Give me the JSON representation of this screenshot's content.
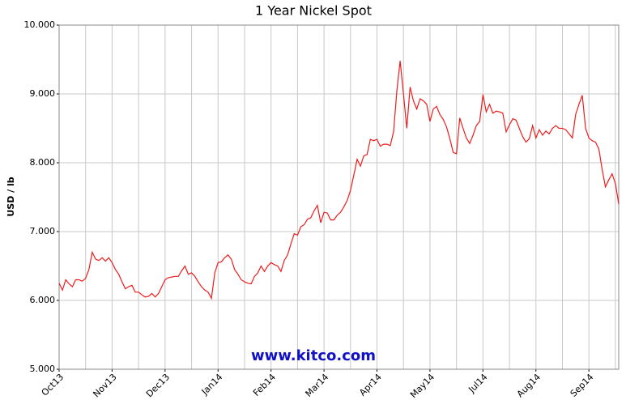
{
  "chart_data": {
    "type": "line",
    "title": "1 Year Nickel Spot",
    "y_label": "USD / lb",
    "watermark": "www.kitco.com",
    "x": [
      0,
      1,
      2,
      3,
      4,
      5,
      6,
      7,
      8,
      9,
      10,
      11,
      12,
      13,
      14,
      15,
      16,
      17,
      18,
      19,
      20,
      21,
      22,
      23,
      24,
      25,
      26,
      27,
      28,
      29,
      30,
      31,
      32,
      33,
      34,
      35,
      36,
      37,
      38,
      39,
      40,
      41,
      42,
      43,
      44,
      45,
      46,
      47,
      48,
      49,
      50,
      51,
      52,
      53,
      54,
      55,
      56,
      57,
      58,
      59,
      60,
      61,
      62,
      63,
      64,
      65,
      66,
      67,
      68,
      69,
      70,
      71,
      72,
      73,
      74,
      75,
      76,
      77,
      78,
      79,
      80,
      81,
      82,
      83,
      84,
      85,
      86,
      87,
      88,
      89,
      90,
      91,
      92,
      93,
      94,
      95,
      96,
      97,
      98,
      99,
      100,
      101,
      102,
      103,
      104,
      105,
      106,
      107,
      108,
      109,
      110,
      111,
      112,
      113,
      114,
      115,
      116,
      117,
      118,
      119,
      120,
      121,
      122,
      123,
      124,
      125,
      126,
      127,
      128,
      129,
      130,
      131,
      132,
      133,
      134,
      135,
      136,
      137,
      138,
      139,
      140,
      141,
      142,
      143,
      144,
      145,
      146,
      147,
      148,
      149,
      150,
      151,
      152,
      153,
      154,
      155,
      156,
      157,
      158,
      159,
      160,
      161,
      162,
      163,
      164,
      165,
      166,
      167,
      168,
      169
    ],
    "series": [
      {
        "name": "Nickel",
        "color": "#ee1c1c",
        "values": [
          6.25,
          6.15,
          6.3,
          6.24,
          6.2,
          6.3,
          6.3,
          6.28,
          6.32,
          6.45,
          6.7,
          6.6,
          6.58,
          6.62,
          6.57,
          6.62,
          6.55,
          6.45,
          6.38,
          6.27,
          6.17,
          6.2,
          6.22,
          6.12,
          6.12,
          6.08,
          6.05,
          6.06,
          6.1,
          6.05,
          6.1,
          6.2,
          6.3,
          6.33,
          6.34,
          6.35,
          6.35,
          6.43,
          6.5,
          6.38,
          6.4,
          6.35,
          6.27,
          6.2,
          6.15,
          6.12,
          6.03,
          6.4,
          6.55,
          6.56,
          6.62,
          6.66,
          6.6,
          6.45,
          6.38,
          6.3,
          6.27,
          6.25,
          6.24,
          6.35,
          6.4,
          6.5,
          6.42,
          6.5,
          6.55,
          6.52,
          6.5,
          6.42,
          6.58,
          6.66,
          6.82,
          6.97,
          6.95,
          7.07,
          7.1,
          7.18,
          7.2,
          7.3,
          7.38,
          7.13,
          7.28,
          7.27,
          7.17,
          7.17,
          7.24,
          7.28,
          7.36,
          7.45,
          7.6,
          7.82,
          8.05,
          7.95,
          8.1,
          8.12,
          8.34,
          8.32,
          8.34,
          8.24,
          8.27,
          8.27,
          8.25,
          8.45,
          9.05,
          9.48,
          9.0,
          8.5,
          9.1,
          8.9,
          8.78,
          8.93,
          8.9,
          8.85,
          8.6,
          8.78,
          8.82,
          8.7,
          8.63,
          8.52,
          8.35,
          8.15,
          8.13,
          8.65,
          8.5,
          8.36,
          8.28,
          8.4,
          8.54,
          8.6,
          8.99,
          8.74,
          8.85,
          8.72,
          8.75,
          8.74,
          8.72,
          8.45,
          8.55,
          8.64,
          8.62,
          8.5,
          8.38,
          8.3,
          8.35,
          8.54,
          8.36,
          8.48,
          8.4,
          8.46,
          8.42,
          8.5,
          8.54,
          8.5,
          8.5,
          8.48,
          8.42,
          8.36,
          8.7,
          8.85,
          8.98,
          8.5,
          8.36,
          8.32,
          8.3,
          8.2,
          7.9,
          7.65,
          7.75,
          7.84,
          7.7,
          7.4
        ]
      }
    ],
    "xlim": [
      0,
      169
    ],
    "xticks": [
      {
        "value": 0,
        "label": "Oct13"
      },
      {
        "value": 16,
        "label": "Nov13"
      },
      {
        "value": 32,
        "label": "Dec13"
      },
      {
        "value": 48,
        "label": "Jan14"
      },
      {
        "value": 64,
        "label": "Feb14"
      },
      {
        "value": 80,
        "label": "Mar14"
      },
      {
        "value": 96,
        "label": "Apr14"
      },
      {
        "value": 112,
        "label": "May14"
      },
      {
        "value": 128,
        "label": "Jul14"
      },
      {
        "value": 144,
        "label": "Aug14"
      },
      {
        "value": 160,
        "label": "Sep14"
      }
    ],
    "ylim": [
      5,
      10
    ],
    "yticks": [
      {
        "value": 5,
        "label": "5.000"
      },
      {
        "value": 6,
        "label": "6.000"
      },
      {
        "value": 7,
        "label": "7.000"
      },
      {
        "value": 8,
        "label": "8.000"
      },
      {
        "value": 9,
        "label": "9.000"
      },
      {
        "value": 10,
        "label": "10.000"
      }
    ],
    "grid": true
  }
}
